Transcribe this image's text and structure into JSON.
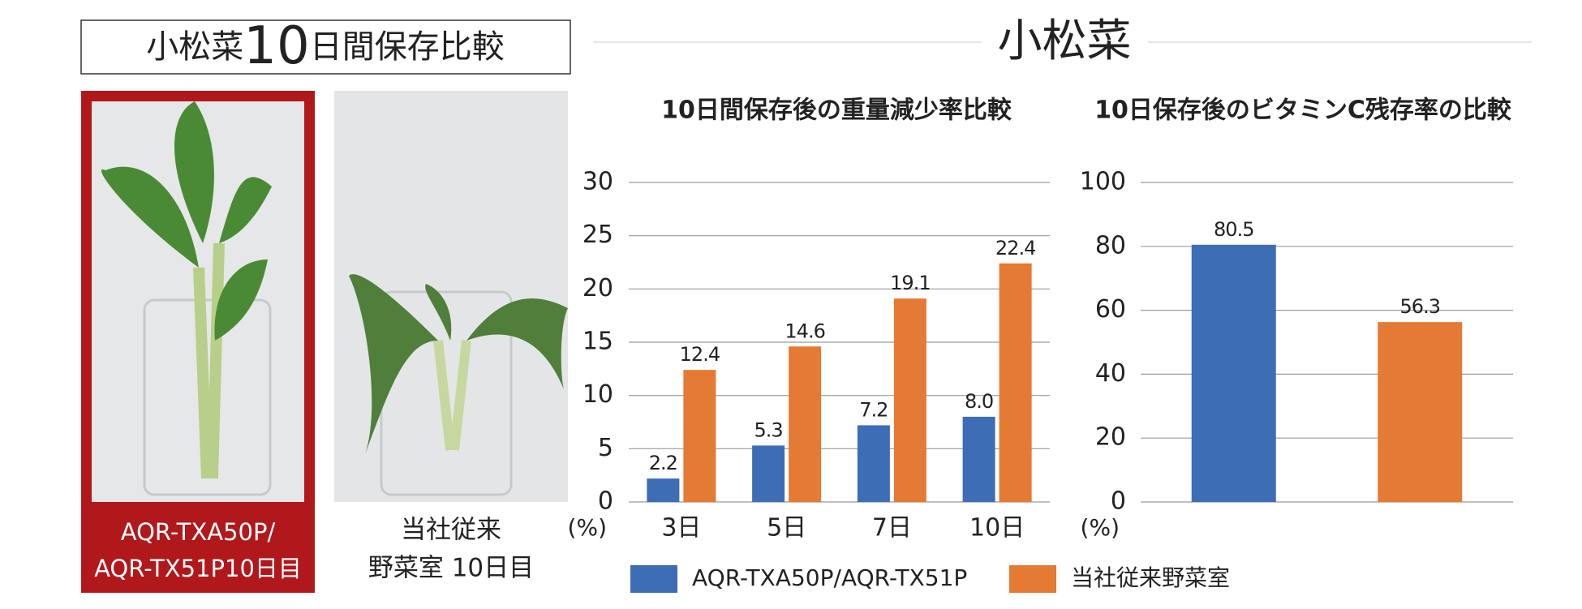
{
  "header": {
    "title_parts": [
      "小松菜",
      "10",
      "日間保存比較"
    ],
    "heading": "小松菜"
  },
  "photos": [
    {
      "label_lines": [
        "AQR-TXA50P/",
        "AQR-TX51P10日目"
      ]
    },
    {
      "label_lines": [
        "当社従来",
        "野菜室 10日目"
      ]
    }
  ],
  "chart_data": [
    {
      "type": "bar",
      "title": "10日間保存後の重量減少率比較",
      "y_unit": "(%)",
      "categories": [
        "3日",
        "5日",
        "7日",
        "10日"
      ],
      "series": [
        {
          "name": "AQR-TXA50P/AQR-TX51P",
          "color": "#3d6db5",
          "values": [
            2.2,
            5.3,
            7.2,
            8.0
          ],
          "value_labels": [
            "2.2",
            "5.3",
            "7.2",
            "8.0"
          ]
        },
        {
          "name": "当社従来野菜室",
          "color": "#e47a33",
          "values": [
            12.4,
            14.6,
            19.1,
            22.4
          ]
        }
      ],
      "ylim": [
        0,
        30
      ],
      "yticks": [
        0,
        5,
        10,
        15,
        20,
        25,
        30
      ],
      "grid": true,
      "legend": "bottom"
    },
    {
      "type": "bar",
      "title": "10日保存後のビタミンC残存率の比較",
      "y_unit": "(%)",
      "categories": [
        null,
        null
      ],
      "values": [
        80.5,
        56.3
      ],
      "colors": [
        "#3d6db5",
        "#e47a33"
      ],
      "ylim": [
        0,
        100
      ],
      "yticks": [
        0,
        20,
        40,
        60,
        80,
        100
      ],
      "grid": true
    }
  ]
}
